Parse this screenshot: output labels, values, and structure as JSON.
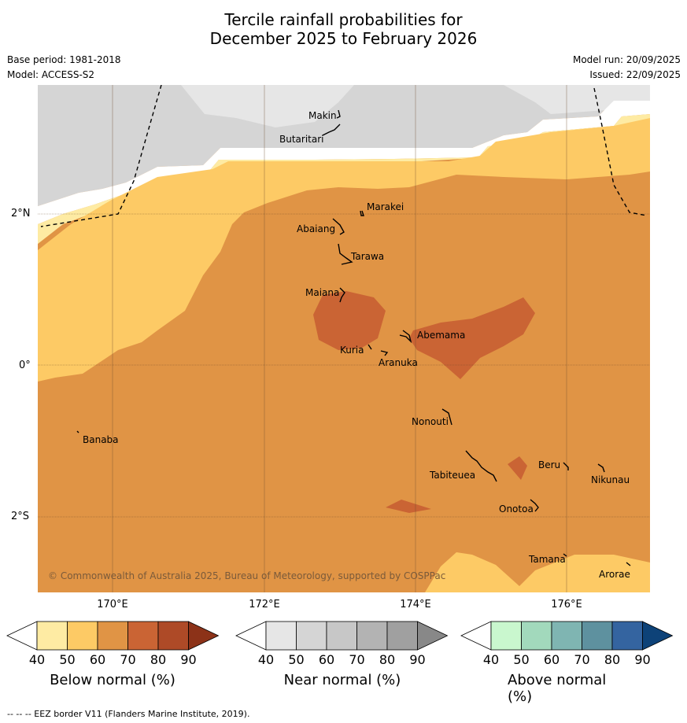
{
  "title": {
    "line1": "Tercile rainfall probabilities for",
    "line2": "December 2025 to February 2026"
  },
  "meta": {
    "base_period": "Base period: 1981-2018",
    "model": "Model: ACCESS-S2",
    "model_run": "Model run: 20/09/2025",
    "issued": "Issued: 22/09/2025"
  },
  "map": {
    "longitude_labels": [
      "170°E",
      "172°E",
      "174°E",
      "176°E"
    ],
    "latitude_labels": [
      "2°N",
      "0°",
      "2°S"
    ],
    "islands": [
      "Makin",
      "Butaritari",
      "Marakei",
      "Abaiang",
      "Tarawa",
      "Maiana",
      "Abemama",
      "Kuria",
      "Aranuka",
      "Nonouti",
      "Banaba",
      "Beru",
      "Nikunau",
      "Tabiteuea",
      "Onotoa",
      "Tamana",
      "Arorae"
    ],
    "copyright": "© Commonwealth of Australia 2025, Bureau of Meteorology, supported by COSPPac"
  },
  "colorbars": [
    {
      "label": "Below normal (%)",
      "ticks": [
        "40",
        "50",
        "60",
        "70",
        "80",
        "90"
      ],
      "colors": [
        "#ffffff",
        "#feeba3",
        "#fdca65",
        "#e09445",
        "#ca6434",
        "#ae4a27",
        "#8c3218"
      ]
    },
    {
      "label": "Near normal (%)",
      "ticks": [
        "40",
        "50",
        "60",
        "70",
        "80",
        "90"
      ],
      "colors": [
        "#ffffff",
        "#e6e6e6",
        "#d5d5d5",
        "#c7c7c7",
        "#b3b3b3",
        "#a0a0a0",
        "#888888"
      ]
    },
    {
      "label": "Above normal (%)",
      "ticks": [
        "40",
        "50",
        "60",
        "70",
        "80",
        "90"
      ],
      "colors": [
        "#ffffff",
        "#c9f7ce",
        "#a2d9bc",
        "#7fb5b2",
        "#5e919f",
        "#3464a0",
        "#0d4278"
      ]
    }
  ],
  "footnote": "-- -- -- EEZ border V11 (Flanders Marine Institute, 2019)."
}
